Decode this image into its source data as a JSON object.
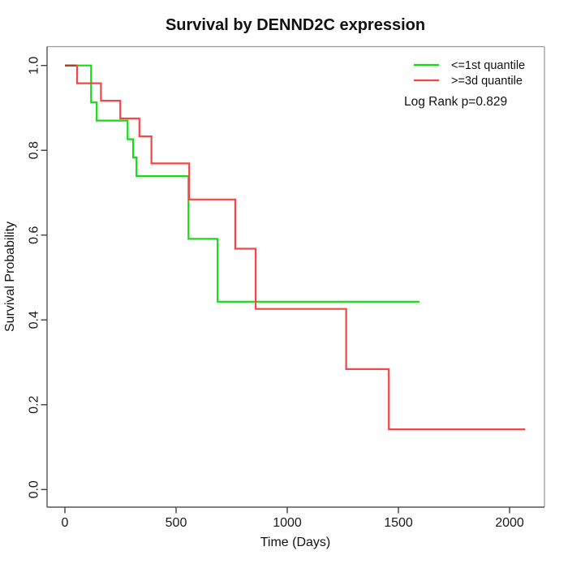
{
  "title": "Survival by DENND2C expression",
  "chart_data": {
    "type": "line",
    "subtype": "kaplan-meier-step",
    "title": "Survival by DENND2C expression",
    "xlabel": "Time (Days)",
    "ylabel": "Survival Probability",
    "xlim": [
      0,
      2000
    ],
    "ylim": [
      0.0,
      1.0
    ],
    "grid": "off",
    "x_ticks": [
      {
        "label": "0",
        "value": 0
      },
      {
        "label": "500",
        "value": 500
      },
      {
        "label": "1000",
        "value": 1000
      },
      {
        "label": "1500",
        "value": 1500
      },
      {
        "label": "2000",
        "value": 2000
      }
    ],
    "y_ticks": [
      {
        "label": "1.0",
        "value": 1.0
      },
      {
        "label": "0.8",
        "value": 0.8
      },
      {
        "label": "0.6",
        "value": 0.6
      },
      {
        "label": "0.4",
        "value": 0.4
      },
      {
        "label": "0.2",
        "value": 0.2
      },
      {
        "label": "0.0",
        "value": 0.0
      }
    ],
    "series": [
      {
        "name": "<=1st quantile",
        "color": "#12dd12",
        "steps": [
          [
            0,
            1.0
          ],
          [
            118,
            0.913
          ],
          [
            143,
            0.87
          ],
          [
            282,
            0.826
          ],
          [
            307,
            0.783
          ],
          [
            322,
            0.739
          ],
          [
            556,
            0.591
          ],
          [
            687,
            0.443
          ]
        ],
        "end_time": 1595
      },
      {
        "name": ">=3d quantile",
        "color": "#f94444",
        "steps": [
          [
            0,
            1.0
          ],
          [
            55,
            0.958
          ],
          [
            162,
            0.917
          ],
          [
            249,
            0.875
          ],
          [
            335,
            0.833
          ],
          [
            389,
            0.769
          ],
          [
            559,
            0.684
          ],
          [
            766,
            0.568
          ],
          [
            858,
            0.426
          ],
          [
            1265,
            0.284
          ],
          [
            1457,
            0.142
          ]
        ],
        "end_time": 2070
      }
    ],
    "overlap_segment": {
      "time_from": 0,
      "time_to": 50,
      "prob": 1.0,
      "color": "#b63a15"
    },
    "legend_position": "topright"
  },
  "legend": {
    "items": [
      {
        "label": "<=1st quantile",
        "color": "#12dd12"
      },
      {
        "label": ">=3d quantile",
        "color": "#f94444"
      }
    ],
    "log_rank": "Log Rank p=0.829"
  },
  "colors": {
    "background": "#ffffff",
    "box_light": "#9b9b9b",
    "box_dark": "#555555",
    "tick": "#404040",
    "text": "#111111"
  }
}
